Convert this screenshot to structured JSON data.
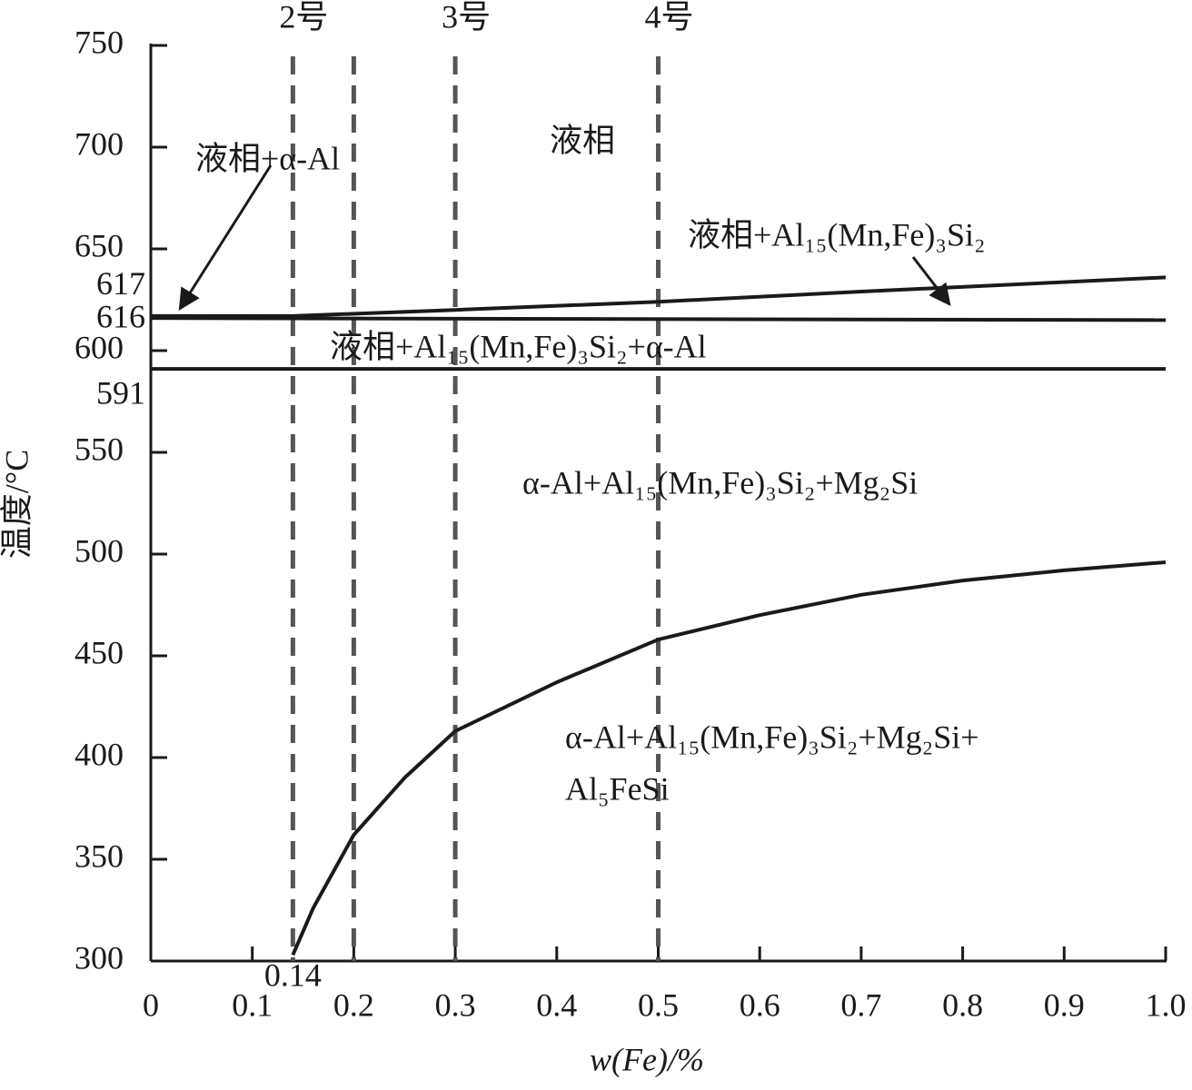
{
  "chart_data": {
    "type": "line",
    "x_label": "w(Fe)/%",
    "y_label": "温度/°C",
    "xlim": [
      0,
      1
    ],
    "ylim": [
      300,
      750
    ],
    "xticks": [
      0,
      0.1,
      0.2,
      0.3,
      0.4,
      0.5,
      0.6,
      0.7,
      0.8,
      0.9,
      {
        "value": 1,
        "label": "1.0"
      }
    ],
    "yticks": [
      300,
      350,
      400,
      450,
      500,
      550,
      600,
      650,
      700,
      750
    ],
    "extra_xticks": [
      0.14
    ],
    "extra_yticks": [
      617,
      616,
      591
    ],
    "compositions": {
      "x": [
        0.14,
        0.2,
        0.3,
        0.5
      ],
      "labels": [
        "2号",
        null,
        "3号",
        "4号"
      ],
      "color": "#555555"
    },
    "series": [
      {
        "color": "#1a1a1a",
        "x": [
          0,
          0.14,
          0.3,
          0.5,
          0.7,
          1.0
        ],
        "values": [
          617,
          617,
          620,
          624,
          629,
          636
        ]
      },
      {
        "color": "#1a1a1a",
        "x": [
          0,
          1.0
        ],
        "values": [
          616,
          615
        ]
      },
      {
        "color": "#1a1a1a",
        "x": [
          0,
          1.0
        ],
        "values": [
          591,
          591
        ]
      },
      {
        "color": "#1a1a1a",
        "x": [
          0.14,
          0.16,
          0.2,
          0.25,
          0.3,
          0.4,
          0.5,
          0.6,
          0.7,
          0.8,
          0.9,
          1.0
        ],
        "values": [
          303,
          326,
          362,
          390,
          413,
          437,
          458,
          470,
          480,
          487,
          492,
          496
        ]
      }
    ],
    "annotations": [
      "液相+α-Al",
      "液相",
      "液相+Al₁₅(Mn,Fe)₃Si₂",
      "液相+Al₁₅(Mn,Fe)₃Si₂+α-Al",
      "α-Al+Al₁₅(Mn,Fe)₃Si₂+Mg₂Si",
      "α-Al+Al₁₅(Mn,Fe)₃Si₂+Mg₂Si+",
      "Al₅FeSi"
    ]
  }
}
